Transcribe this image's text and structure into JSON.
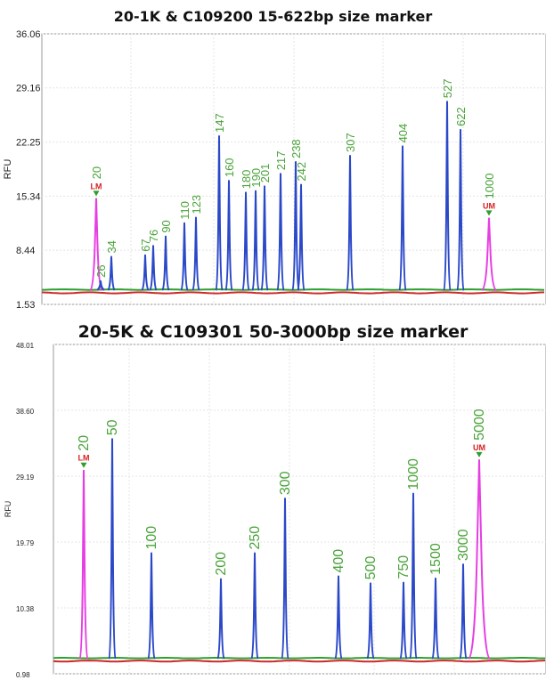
{
  "chart_data": [
    {
      "type": "line",
      "title": "20-1K & C109200 15-622bp size marker",
      "ylabel": "RFU",
      "ylim": [
        1.53,
        36.06
      ],
      "yticks": [
        "36.06",
        "29.16",
        "22.25",
        "15.34",
        "8.44",
        "1.53"
      ],
      "yticks_num": [
        36.06,
        29.16,
        22.25,
        15.34,
        8.44,
        1.53
      ],
      "grid": true,
      "colors": {
        "blue": "#2a48c8",
        "magenta": "#e63ee3",
        "green": "#2f9e2f",
        "red": "#cc2a2a",
        "label": "#4aa33a",
        "marker": "#d82020"
      },
      "peaks": [
        {
          "label": "20",
          "rfu": 15.0,
          "color": "magenta",
          "marker": "LM"
        },
        {
          "label": "26",
          "rfu": 4.5,
          "color": "blue"
        },
        {
          "label": "34",
          "rfu": 7.6,
          "color": "blue"
        },
        {
          "label": "67",
          "rfu": 7.8,
          "color": "blue"
        },
        {
          "label": "76",
          "rfu": 9.0,
          "color": "blue"
        },
        {
          "label": "90",
          "rfu": 10.2,
          "color": "blue"
        },
        {
          "label": "110",
          "rfu": 11.9,
          "color": "blue"
        },
        {
          "label": "123",
          "rfu": 12.6,
          "color": "blue"
        },
        {
          "label": "147",
          "rfu": 23.0,
          "color": "blue"
        },
        {
          "label": "160",
          "rfu": 17.3,
          "color": "blue"
        },
        {
          "label": "180",
          "rfu": 15.8,
          "color": "blue"
        },
        {
          "label": "190",
          "rfu": 16.0,
          "color": "blue"
        },
        {
          "label": "201",
          "rfu": 16.6,
          "color": "blue"
        },
        {
          "label": "217",
          "rfu": 18.2,
          "color": "blue"
        },
        {
          "label": "238",
          "rfu": 19.7,
          "color": "blue"
        },
        {
          "label": "242",
          "rfu": 16.8,
          "color": "blue"
        },
        {
          "label": "307",
          "rfu": 20.5,
          "color": "blue"
        },
        {
          "label": "404",
          "rfu": 21.7,
          "color": "blue"
        },
        {
          "label": "527",
          "rfu": 27.4,
          "color": "blue"
        },
        {
          "label": "622",
          "rfu": 23.8,
          "color": "blue"
        },
        {
          "label": "1000",
          "rfu": 12.5,
          "color": "magenta",
          "marker": "UM"
        }
      ]
    },
    {
      "type": "line",
      "title": "20-5K & C109301 50-3000bp size marker",
      "ylabel": "RFU",
      "ylim": [
        0.98,
        48.01
      ],
      "yticks": [
        "48.01",
        "38.60",
        "29.19",
        "19.79",
        "10.38",
        "0.98"
      ],
      "yticks_num": [
        48.01,
        38.6,
        29.19,
        19.79,
        10.38,
        0.98
      ],
      "grid": true,
      "colors": {
        "blue": "#2a48c8",
        "magenta": "#e63ee3",
        "green": "#2f9e2f",
        "red": "#cc2a2a",
        "label": "#4aa33a",
        "marker": "#d82020"
      },
      "peaks": [
        {
          "label": "20",
          "rfu": 30.0,
          "color": "magenta",
          "marker": "LM"
        },
        {
          "label": "50",
          "rfu": 34.5,
          "color": "blue"
        },
        {
          "label": "100",
          "rfu": 18.2,
          "color": "blue"
        },
        {
          "label": "200",
          "rfu": 14.5,
          "color": "blue"
        },
        {
          "label": "250",
          "rfu": 18.2,
          "color": "blue"
        },
        {
          "label": "300",
          "rfu": 26.0,
          "color": "blue"
        },
        {
          "label": "400",
          "rfu": 14.9,
          "color": "blue"
        },
        {
          "label": "500",
          "rfu": 13.9,
          "color": "blue"
        },
        {
          "label": "750",
          "rfu": 14.0,
          "color": "blue"
        },
        {
          "label": "1000",
          "rfu": 26.7,
          "color": "blue"
        },
        {
          "label": "1500",
          "rfu": 14.6,
          "color": "blue"
        },
        {
          "label": "3000",
          "rfu": 16.6,
          "color": "blue"
        },
        {
          "label": "5000",
          "rfu": 31.5,
          "color": "magenta",
          "marker": "UM"
        }
      ]
    }
  ]
}
